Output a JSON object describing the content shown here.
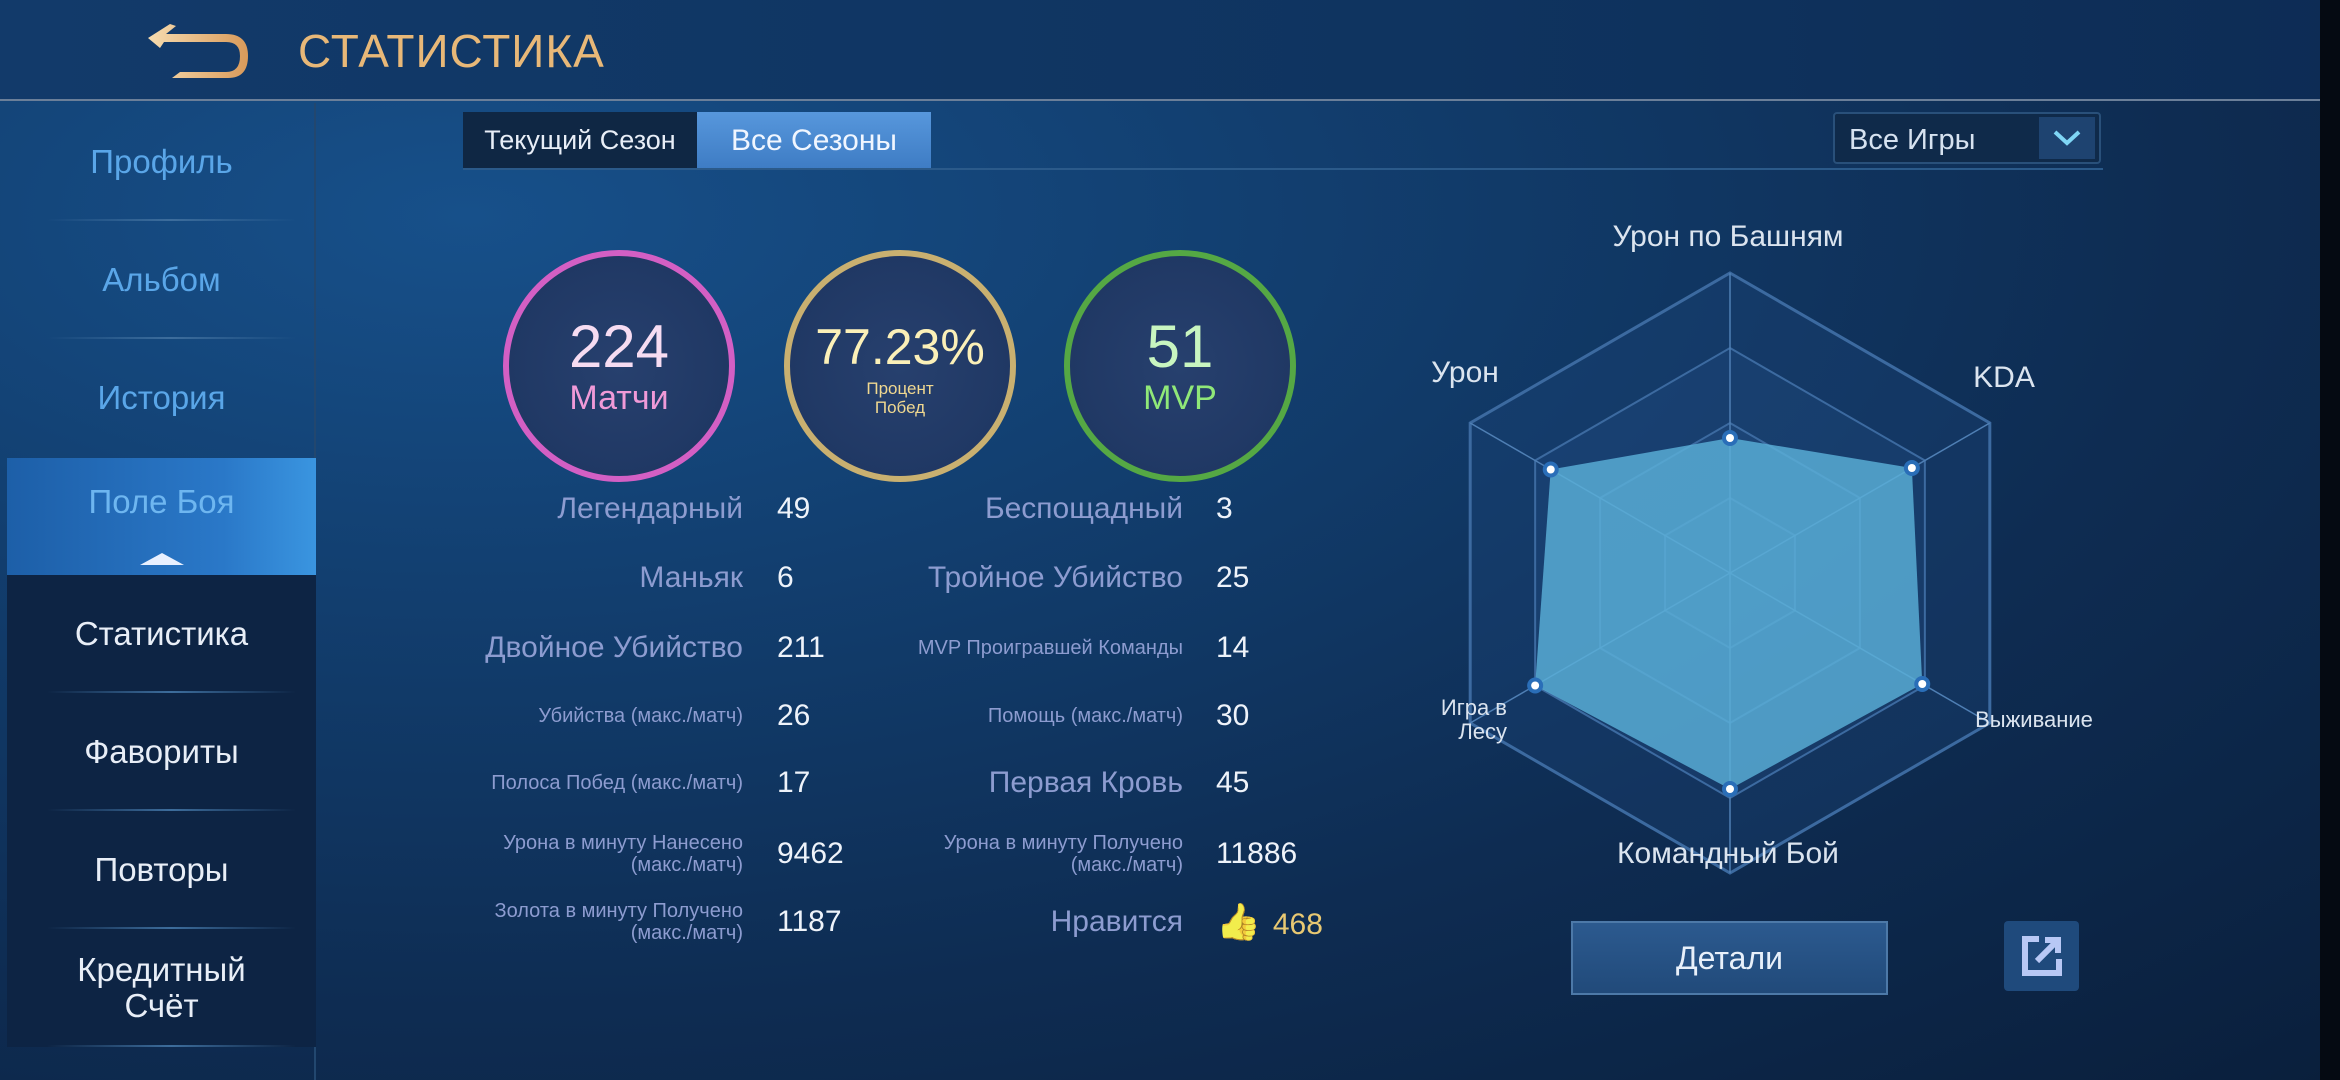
{
  "header": {
    "title": "СТАТИСТИКА",
    "back_icon": "back-arrow-icon"
  },
  "sidebar": {
    "items": [
      {
        "label": "Профиль"
      },
      {
        "label": "Альбом"
      },
      {
        "label": "История"
      },
      {
        "label": "Поле Боя"
      },
      {
        "label": "Статистика"
      },
      {
        "label": "Фавориты"
      },
      {
        "label": "Повторы"
      },
      {
        "label": "Кредитный Счёт"
      }
    ]
  },
  "tabs": [
    {
      "label": "Текущий Сезон"
    },
    {
      "label": "Все Сезоны"
    }
  ],
  "filter": {
    "selected": "Все Игры"
  },
  "summary": {
    "matches": {
      "value": "224",
      "label": "Матчи",
      "color": "#d35fc4"
    },
    "winrate": {
      "value": "77.23%",
      "label": "Процент Побед",
      "color": "#c9b070"
    },
    "mvp": {
      "value": "51",
      "label": "MVP",
      "color": "#55a844"
    }
  },
  "stats_left": [
    {
      "label": "Легендарный",
      "value": "49"
    },
    {
      "label": "Маньяк",
      "value": "6"
    },
    {
      "label": "Двойное Убийство",
      "value": "211"
    },
    {
      "label": "Убийства (макс./матч)",
      "value": "26"
    },
    {
      "label": "Полоса Побед (макс./матч)",
      "value": "17"
    },
    {
      "label": "Урона в минуту Нанесено (макс./матч)",
      "value": "9462"
    },
    {
      "label": "Золота в минуту Получено (макс./матч)",
      "value": "1187"
    }
  ],
  "stats_right": [
    {
      "label": "Беспощадный",
      "value": "3"
    },
    {
      "label": "Тройное Убийство",
      "value": "25"
    },
    {
      "label": "MVP Проигравшей Команды",
      "value": "14"
    },
    {
      "label": "Помощь (макс./матч)",
      "value": "30"
    },
    {
      "label": "Первая Кровь",
      "value": "45"
    },
    {
      "label": "Урона в минуту Получено (макс./матч)",
      "value": "11886"
    },
    {
      "label": "Нравится",
      "value": "468"
    }
  ],
  "chart_data": {
    "type": "radar",
    "axes": [
      "Урон по Башням",
      "KDA",
      "Выживание",
      "Командный Бой",
      "Игра в Лесу",
      "Урон"
    ],
    "values": [
      0.45,
      0.7,
      0.74,
      0.72,
      0.75,
      0.69
    ],
    "range": [
      0,
      1
    ],
    "fill_color": "#5ab0d8"
  },
  "actions": {
    "details": "Детали",
    "share_icon": "external-link-icon"
  }
}
